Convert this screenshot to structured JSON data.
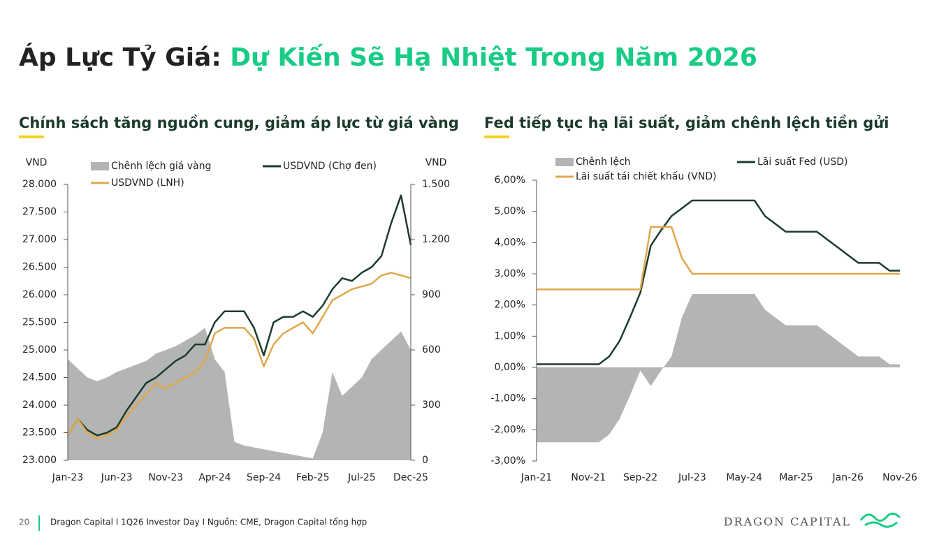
{
  "header": {
    "title_black": "Áp Lực Tỷ Giá:",
    "title_green": "Dự Kiến Sẽ Hạ Nhiệt Trong Năm 2026"
  },
  "footer": {
    "page": "20",
    "source": "Dragon Capital I 1Q26 Investor Day I Nguồn: CME, Dragon Capital tổng hợp",
    "brand": "DRAGON CAPITAL"
  },
  "chart_data": [
    {
      "type": "line",
      "title": "Chính sách tăng nguồn cung, giảm áp lực từ giá vàng",
      "ylabel": "VND",
      "y2label": "VND",
      "categories": [
        "Jan-23",
        null,
        null,
        null,
        null,
        "Jun-23",
        null,
        null,
        null,
        null,
        "Nov-23",
        null,
        null,
        null,
        null,
        "Apr-24",
        null,
        null,
        null,
        null,
        "Sep-24",
        null,
        null,
        null,
        null,
        "Feb-25",
        null,
        null,
        null,
        null,
        "Jul-25",
        null,
        null,
        null,
        null,
        "Dec-25"
      ],
      "ylim": [
        23000,
        28000
      ],
      "yticks": [
        {
          "value": 23000,
          "label": "23.000"
        },
        {
          "value": 23500,
          "label": "23.500"
        },
        {
          "value": 24000,
          "label": "24.000"
        },
        {
          "value": 24500,
          "label": "24.500"
        },
        {
          "value": 25000,
          "label": "25.000"
        },
        {
          "value": 25500,
          "label": "25.500"
        },
        {
          "value": 26000,
          "label": "26.000"
        },
        {
          "value": 26500,
          "label": "26.500"
        },
        {
          "value": 27000,
          "label": "27.000"
        },
        {
          "value": 27500,
          "label": "27.500"
        },
        {
          "value": 28000,
          "label": "28.000"
        }
      ],
      "y2lim": [
        0,
        1500
      ],
      "y2ticks": [
        0,
        300,
        600,
        900,
        {
          "value": 1200,
          "label": "1.200"
        },
        {
          "value": 1500,
          "label": "1.500"
        }
      ],
      "series": [
        {
          "name": "Chênh lệch giá vàng",
          "type": "area",
          "axis": "y2",
          "color": "#b3b5b4",
          "values": [
            550,
            500,
            450,
            430,
            450,
            480,
            500,
            520,
            540,
            580,
            600,
            620,
            650,
            680,
            720,
            550,
            480,
            100,
            80,
            70,
            60,
            50,
            40,
            30,
            20,
            10,
            150,
            480,
            350,
            400,
            450,
            550,
            600,
            650,
            700,
            600
          ]
        },
        {
          "name": "USDVND (Chợ đen)",
          "type": "line",
          "color": "#1d3b2c",
          "values": [
            23450,
            23750,
            23550,
            23450,
            23500,
            23600,
            23900,
            24150,
            24400,
            24500,
            24650,
            24800,
            24900,
            25100,
            25100,
            25500,
            25700,
            25700,
            25700,
            25400,
            24900,
            25500,
            25600,
            25600,
            25700,
            25600,
            25800,
            26100,
            26300,
            26250,
            26400,
            26500,
            26700,
            27300,
            27800,
            26900
          ]
        },
        {
          "name": "USDVND (LNH)",
          "type": "line",
          "color": "#e0a84a",
          "values": [
            23450,
            23750,
            23500,
            23400,
            23450,
            23550,
            23800,
            24000,
            24200,
            24400,
            24300,
            24400,
            24500,
            24600,
            24800,
            25300,
            25400,
            25400,
            25400,
            25200,
            24700,
            25100,
            25300,
            25400,
            25500,
            25300,
            25600,
            25900,
            26000,
            26100,
            26150,
            26200,
            26350,
            26400,
            26350,
            26300
          ]
        }
      ]
    },
    {
      "type": "line",
      "title": "Fed tiếp tục hạ lãi suất, giảm chênh lệch tiền gửi",
      "categories": [
        "Jan-21",
        null,
        null,
        null,
        null,
        "Nov-21",
        null,
        null,
        null,
        null,
        "Sep-22",
        null,
        null,
        null,
        null,
        "Jul-23",
        null,
        null,
        null,
        null,
        "May-24",
        null,
        null,
        null,
        null,
        "Mar-25",
        null,
        null,
        null,
        null,
        "Jan-26",
        null,
        null,
        null,
        null,
        "Nov-26"
      ],
      "ylim": [
        -3,
        6
      ],
      "yticks": [
        {
          "value": -3,
          "label": "-3,00%"
        },
        {
          "value": -2,
          "label": "-2,00%"
        },
        {
          "value": -1,
          "label": "-1,00%"
        },
        {
          "value": 0,
          "label": "0,00%"
        },
        {
          "value": 1,
          "label": "1,00%"
        },
        {
          "value": 2,
          "label": "2,00%"
        },
        {
          "value": 3,
          "label": "3,00%"
        },
        {
          "value": 4,
          "label": "4,00%"
        },
        {
          "value": 5,
          "label": "5,00%"
        },
        {
          "value": 6,
          "label": "6,00%"
        }
      ],
      "series": [
        {
          "name": "Chênh lệch",
          "type": "area",
          "color": "#b3b5b4",
          "values": [
            -2.4,
            -2.4,
            -2.4,
            -2.4,
            -2.4,
            -2.4,
            -2.4,
            -2.15,
            -1.65,
            -0.9,
            -0.1,
            -0.6,
            -0.1,
            0.35,
            1.6,
            2.35,
            2.35,
            2.35,
            2.35,
            2.35,
            2.35,
            2.35,
            1.85,
            1.6,
            1.35,
            1.35,
            1.35,
            1.35,
            1.1,
            0.85,
            0.6,
            0.35,
            0.35,
            0.35,
            0.1,
            0.1
          ]
        },
        {
          "name": "Lãi suất Fed (USD)",
          "type": "line",
          "color": "#1d3b2c",
          "values": [
            0.1,
            0.1,
            0.1,
            0.1,
            0.1,
            0.1,
            0.1,
            0.35,
            0.85,
            1.6,
            2.4,
            3.9,
            4.4,
            4.85,
            5.1,
            5.35,
            5.35,
            5.35,
            5.35,
            5.35,
            5.35,
            5.35,
            4.85,
            4.6,
            4.35,
            4.35,
            4.35,
            4.35,
            4.1,
            3.85,
            3.6,
            3.35,
            3.35,
            3.35,
            3.1,
            3.1
          ]
        },
        {
          "name": "Lãi suất tái chiết khấu (VND)",
          "type": "line",
          "color": "#e0a84a",
          "values": [
            2.5,
            2.5,
            2.5,
            2.5,
            2.5,
            2.5,
            2.5,
            2.5,
            2.5,
            2.5,
            2.5,
            4.5,
            4.5,
            4.5,
            3.5,
            3.0,
            3.0,
            3.0,
            3.0,
            3.0,
            3.0,
            3.0,
            3.0,
            3.0,
            3.0,
            3.0,
            3.0,
            3.0,
            3.0,
            3.0,
            3.0,
            3.0,
            3.0,
            3.0,
            3.0,
            3.0
          ]
        }
      ]
    }
  ]
}
